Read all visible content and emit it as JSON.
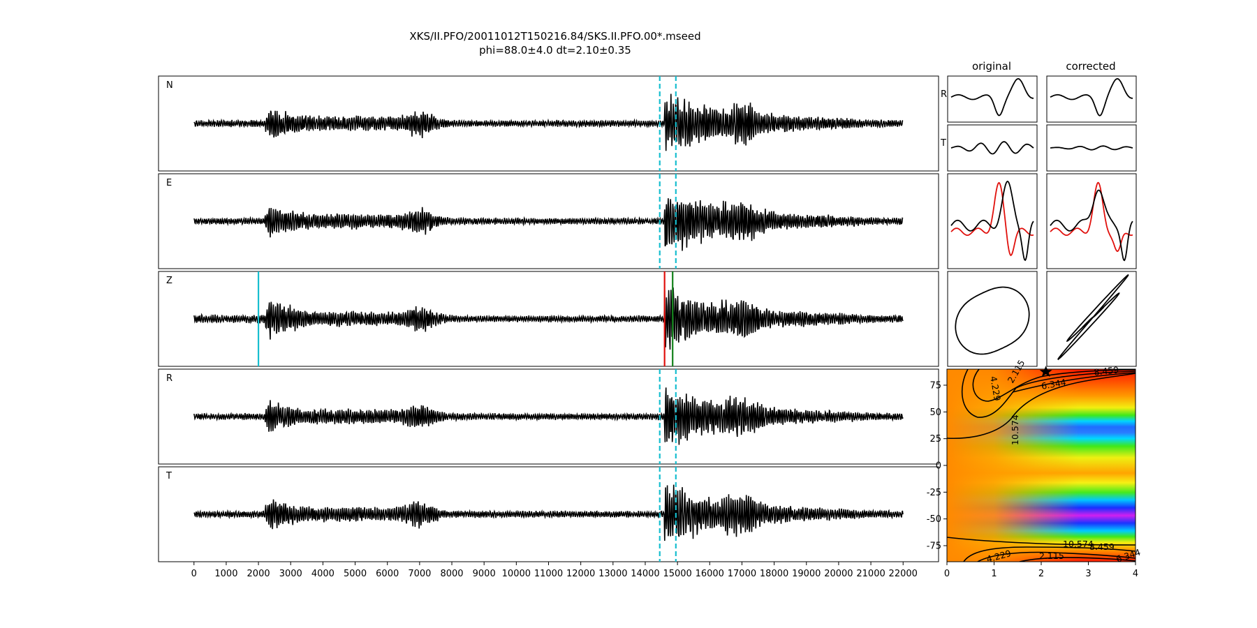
{
  "header": {
    "title": "XKS/II.PFO/20011012T150216.84/SKS.II.PFO.00*.mseed",
    "subtitle": "phi=88.0±4.0 dt=2.10±0.35"
  },
  "chart_data": [
    {
      "type": "line",
      "id": "traces",
      "x_ticks": [
        0,
        1000,
        2000,
        3000,
        4000,
        5000,
        6000,
        7000,
        8000,
        9000,
        10000,
        11000,
        12000,
        13000,
        14000,
        15000,
        16000,
        17000,
        18000,
        19000,
        20000,
        21000,
        22000
      ],
      "xlim": [
        -1100,
        23100
      ],
      "x_range": [
        0,
        22000
      ],
      "panels": [
        {
          "label": "N",
          "window": [
            14450,
            14950
          ]
        },
        {
          "label": "E",
          "window": [
            14450,
            14950
          ]
        },
        {
          "label": "Z",
          "picks": [
            {
              "x": 2000,
              "color": "#17becf"
            },
            {
              "x": 14600,
              "color": "#e0100c"
            },
            {
              "x": 14850,
              "color": "#12811a"
            }
          ]
        },
        {
          "label": "R",
          "window": [
            14450,
            14950
          ]
        },
        {
          "label": "T",
          "window": [
            14450,
            14950
          ]
        }
      ]
    },
    {
      "type": "line",
      "id": "particle-motion",
      "columns": [
        "original",
        "corrected"
      ],
      "row_labels": [
        "R",
        "T"
      ],
      "series_colors": {
        "reference": "#000000",
        "shifted": "#e0100c"
      }
    },
    {
      "type": "heatmap",
      "id": "error-surface",
      "x_ticks": [
        0,
        1,
        2,
        3,
        4
      ],
      "xlim": [
        0,
        4
      ],
      "y_ticks": [
        75,
        50,
        25,
        0,
        -25,
        -50,
        -75
      ],
      "ylim": [
        -90,
        90
      ],
      "best": {
        "dt": 2.1,
        "phi": 88.0
      },
      "contour_labels": [
        "4.229",
        "2.115",
        "6.344",
        "8.459",
        "10.574",
        "10.574",
        "8.459",
        "4.229",
        "2.115",
        "6.344"
      ]
    }
  ]
}
